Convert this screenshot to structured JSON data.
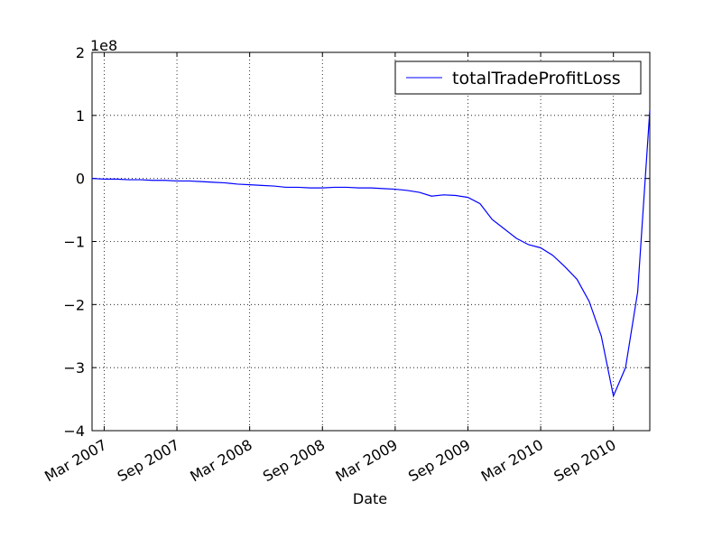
{
  "chart_data": {
    "type": "line",
    "x_label": "Date",
    "y_offset_label": "1e8",
    "x": [
      "2007-02",
      "2007-03",
      "2007-04",
      "2007-05",
      "2007-06",
      "2007-07",
      "2007-08",
      "2007-09",
      "2007-10",
      "2007-11",
      "2007-12",
      "2008-01",
      "2008-02",
      "2008-03",
      "2008-04",
      "2008-05",
      "2008-06",
      "2008-07",
      "2008-08",
      "2008-09",
      "2008-10",
      "2008-11",
      "2008-12",
      "2009-01",
      "2009-02",
      "2009-03",
      "2009-04",
      "2009-05",
      "2009-06",
      "2009-07",
      "2009-08",
      "2009-09",
      "2009-10",
      "2009-11",
      "2009-12",
      "2010-01",
      "2010-02",
      "2010-03",
      "2010-04",
      "2010-05",
      "2010-06",
      "2010-07",
      "2010-08",
      "2010-09",
      "2010-10",
      "2010-11",
      "2010-12"
    ],
    "series": [
      {
        "name": "totalTradeProfitLoss",
        "color": "#0000ff",
        "values": [
          0,
          -0.01,
          -0.01,
          -0.02,
          -0.02,
          -0.03,
          -0.03,
          -0.04,
          -0.04,
          -0.05,
          -0.06,
          -0.07,
          -0.09,
          -0.1,
          -0.11,
          -0.12,
          -0.14,
          -0.14,
          -0.15,
          -0.15,
          -0.14,
          -0.14,
          -0.15,
          -0.15,
          -0.16,
          -0.17,
          -0.19,
          -0.22,
          -0.28,
          -0.26,
          -0.27,
          -0.3,
          -0.4,
          -0.65,
          -0.8,
          -0.95,
          -1.05,
          -1.1,
          -1.22,
          -1.4,
          -1.6,
          -1.95,
          -2.5,
          -3.45,
          -3.0,
          -1.8,
          1.08
        ]
      }
    ],
    "xlim": [
      "2007-02",
      "2010-12"
    ],
    "xticks": [
      {
        "value": "2007-03",
        "label": "Mar 2007"
      },
      {
        "value": "2007-09",
        "label": "Sep 2007"
      },
      {
        "value": "2008-03",
        "label": "Mar 2008"
      },
      {
        "value": "2008-09",
        "label": "Sep 2008"
      },
      {
        "value": "2009-03",
        "label": "Mar 2009"
      },
      {
        "value": "2009-09",
        "label": "Sep 2009"
      },
      {
        "value": "2010-03",
        "label": "Mar 2010"
      },
      {
        "value": "2010-09",
        "label": "Sep 2010"
      }
    ],
    "ylim": [
      -4,
      2
    ],
    "yticks": [
      {
        "value": -4,
        "label": "−4"
      },
      {
        "value": -3,
        "label": "−3"
      },
      {
        "value": -2,
        "label": "−2"
      },
      {
        "value": -1,
        "label": "−1"
      },
      0,
      1,
      2
    ],
    "grid": true,
    "legend": "upper right"
  }
}
